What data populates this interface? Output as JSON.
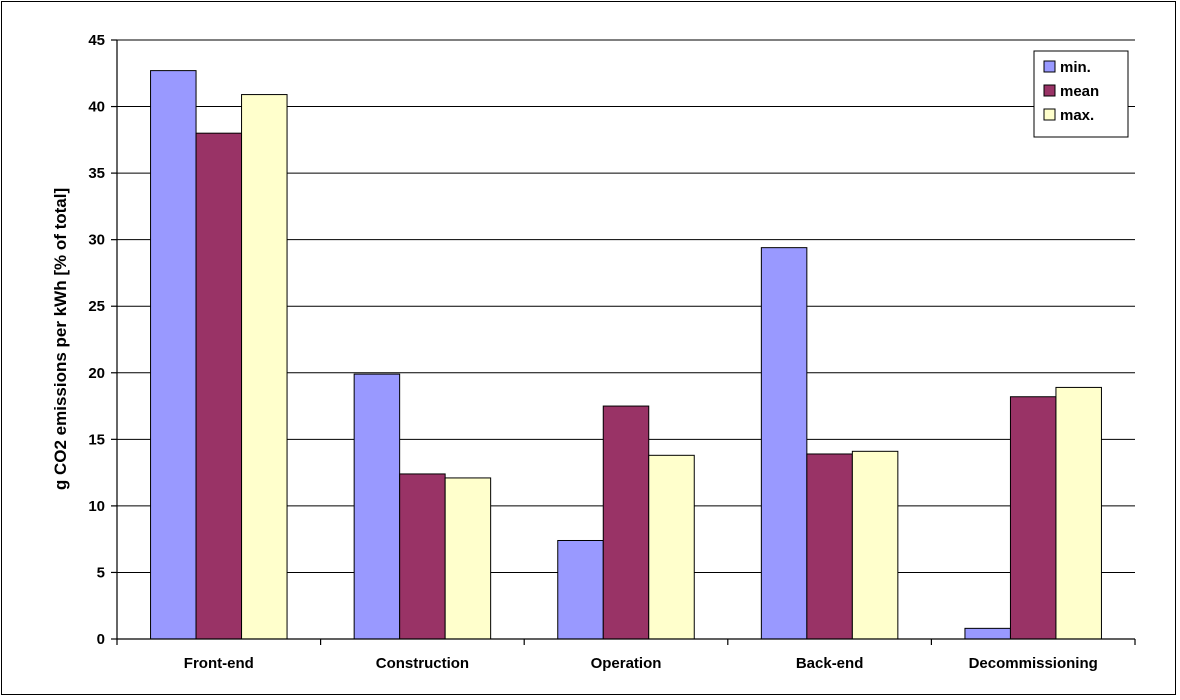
{
  "chart_data": {
    "type": "bar",
    "title": "",
    "xlabel": "",
    "ylabel": "g CO2 emissions per kWh [% of total]",
    "categories": [
      "Front-end",
      "Construction",
      "Operation",
      "Back-end",
      "Decommissioning"
    ],
    "series": [
      {
        "name": "min.",
        "color": "#9999ff",
        "values": [
          42.7,
          19.9,
          7.4,
          29.4,
          0.8
        ]
      },
      {
        "name": "mean",
        "color": "#993366",
        "values": [
          38.0,
          12.4,
          17.5,
          13.9,
          18.2
        ]
      },
      {
        "name": "max.",
        "color": "#ffffcc",
        "values": [
          40.9,
          12.1,
          13.8,
          14.1,
          18.9
        ]
      }
    ],
    "ylim": [
      0,
      45
    ],
    "yticks": [
      0,
      5,
      10,
      15,
      20,
      25,
      30,
      35,
      40,
      45
    ],
    "grid": true,
    "legend_position": "top-right"
  }
}
